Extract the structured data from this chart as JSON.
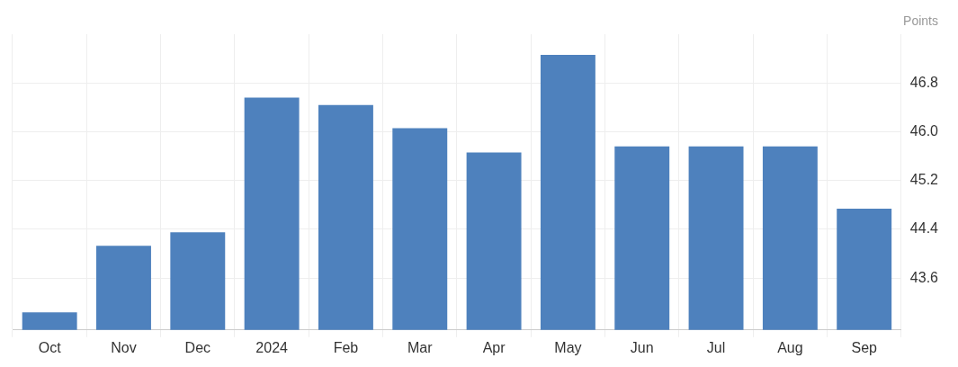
{
  "chart_data": {
    "type": "bar",
    "ylabel": "Points",
    "categories": [
      "Oct",
      "Nov",
      "Dec",
      "2024",
      "Feb",
      "Mar",
      "Apr",
      "May",
      "Jun",
      "Jul",
      "Aug",
      "Sep"
    ],
    "values": [
      43.04,
      44.13,
      44.35,
      46.56,
      46.44,
      46.06,
      45.66,
      47.26,
      45.76,
      45.76,
      45.76,
      44.74
    ],
    "color": "#4e81bd",
    "ylim": [
      42.75,
      47.6
    ],
    "yticks": [
      43.6,
      44.4,
      45.2,
      {
        "value": 46,
        "label": "46.0"
      },
      46.8
    ],
    "grid": true
  }
}
